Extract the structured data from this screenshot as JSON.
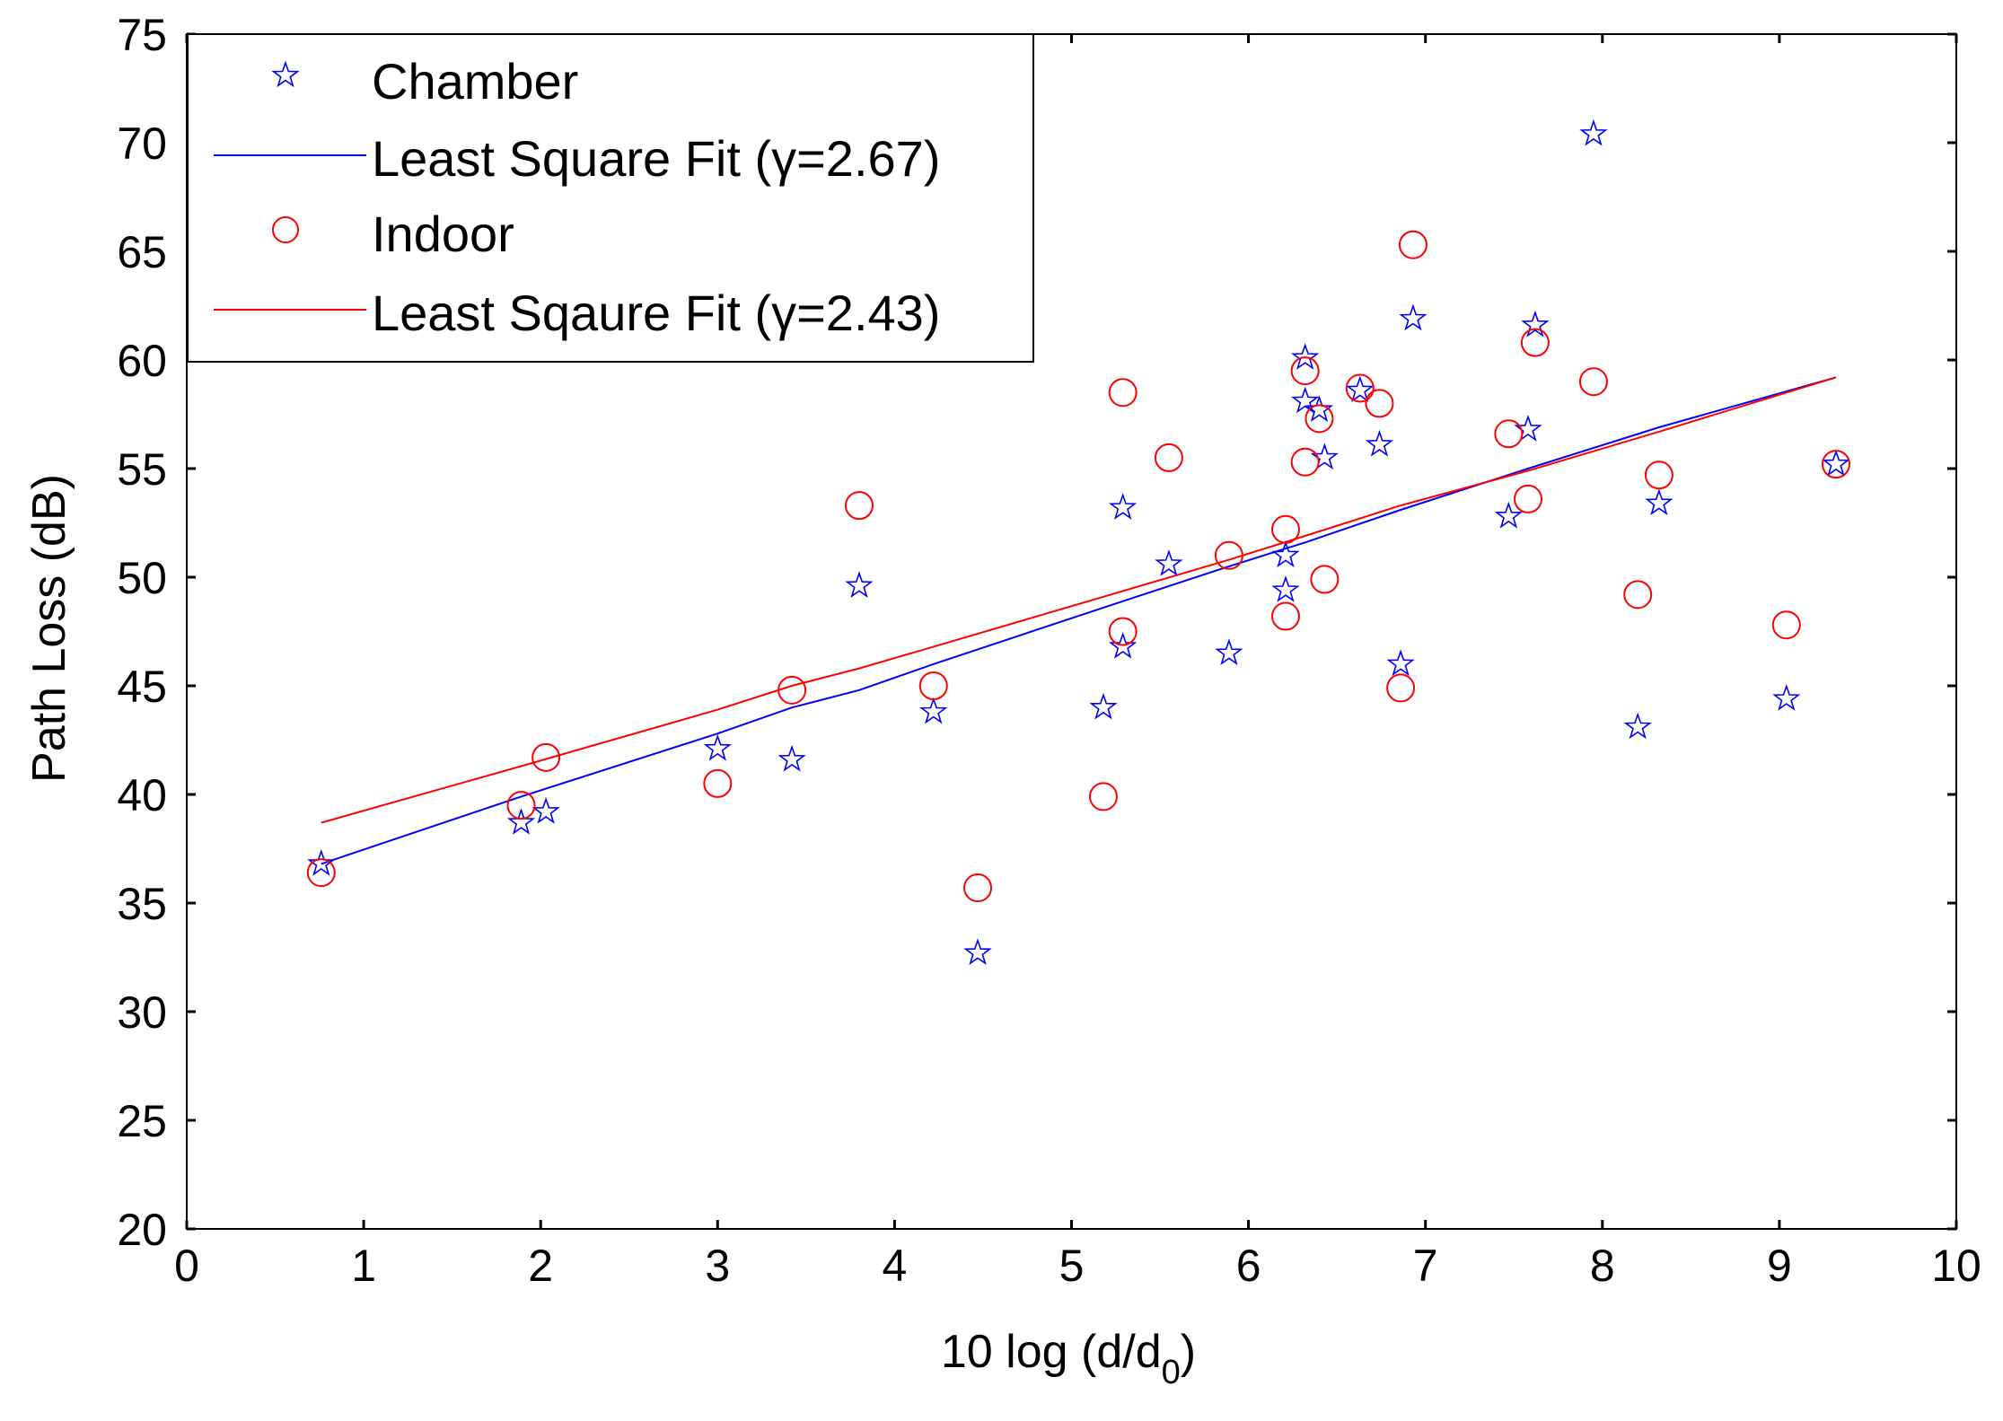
{
  "chart_data": {
    "type": "scatter",
    "xlabel": "10 log (d/d",
    "xlabel_sub": "0",
    "xlabel_close": ")",
    "ylabel": "Path Loss (dB)",
    "xlim": [
      0,
      10
    ],
    "ylim": [
      20,
      75
    ],
    "xticks": [
      "0",
      "1",
      "2",
      "3",
      "4",
      "5",
      "6",
      "7",
      "8",
      "9",
      "10"
    ],
    "yticks": [
      "20",
      "25",
      "30",
      "35",
      "40",
      "45",
      "50",
      "55",
      "60",
      "65",
      "70",
      "75"
    ],
    "grid": false,
    "legend_position": "top-left",
    "colors": {
      "chamber": "#0000ff",
      "indoor": "#ff0000"
    },
    "series": [
      {
        "name": "Chamber",
        "kind": "scatter",
        "marker": "star",
        "color": "#0000ff",
        "points": [
          [
            0.76,
            36.8
          ],
          [
            1.89,
            38.7
          ],
          [
            2.03,
            39.2
          ],
          [
            3.0,
            42.1
          ],
          [
            3.42,
            41.6
          ],
          [
            3.8,
            49.6
          ],
          [
            4.22,
            43.8
          ],
          [
            4.47,
            32.7
          ],
          [
            5.18,
            44.0
          ],
          [
            5.29,
            53.2
          ],
          [
            5.29,
            46.8
          ],
          [
            5.55,
            50.6
          ],
          [
            5.89,
            46.5
          ],
          [
            6.21,
            51.0
          ],
          [
            6.21,
            49.4
          ],
          [
            6.32,
            60.1
          ],
          [
            6.32,
            58.1
          ],
          [
            6.4,
            57.7
          ],
          [
            6.43,
            55.5
          ],
          [
            6.63,
            58.6
          ],
          [
            6.74,
            56.1
          ],
          [
            6.86,
            46.0
          ],
          [
            6.93,
            61.9
          ],
          [
            7.47,
            52.8
          ],
          [
            7.58,
            56.8
          ],
          [
            7.62,
            61.6
          ],
          [
            7.95,
            70.4
          ],
          [
            8.2,
            43.1
          ],
          [
            8.32,
            53.4
          ],
          [
            9.04,
            44.4
          ],
          [
            9.32,
            55.2
          ]
        ]
      },
      {
        "name": "Least Square Fit (γ=2.67)",
        "kind": "line",
        "color": "#0000ff",
        "points": [
          [
            0.76,
            36.8
          ],
          [
            1.89,
            39.9
          ],
          [
            3.0,
            42.8
          ],
          [
            3.42,
            44.0
          ],
          [
            3.8,
            44.8
          ],
          [
            4.22,
            46.0
          ],
          [
            5.18,
            48.6
          ],
          [
            5.89,
            50.5
          ],
          [
            6.32,
            51.6
          ],
          [
            6.86,
            53.1
          ],
          [
            7.58,
            55.0
          ],
          [
            8.32,
            56.9
          ],
          [
            9.32,
            59.2
          ]
        ]
      },
      {
        "name": "Indoor",
        "kind": "scatter",
        "marker": "circle",
        "color": "#ff0000",
        "points": [
          [
            0.76,
            36.4
          ],
          [
            1.89,
            39.5
          ],
          [
            2.03,
            41.7
          ],
          [
            3.0,
            40.5
          ],
          [
            3.42,
            44.8
          ],
          [
            3.8,
            53.3
          ],
          [
            4.22,
            45.0
          ],
          [
            4.47,
            35.7
          ],
          [
            5.18,
            39.9
          ],
          [
            5.29,
            58.5
          ],
          [
            5.29,
            47.5
          ],
          [
            5.55,
            55.5
          ],
          [
            5.89,
            51.0
          ],
          [
            6.21,
            52.2
          ],
          [
            6.21,
            48.2
          ],
          [
            6.32,
            59.5
          ],
          [
            6.32,
            55.3
          ],
          [
            6.4,
            57.3
          ],
          [
            6.43,
            49.9
          ],
          [
            6.63,
            58.7
          ],
          [
            6.74,
            58.0
          ],
          [
            6.86,
            44.9
          ],
          [
            6.93,
            65.3
          ],
          [
            7.47,
            56.6
          ],
          [
            7.58,
            53.6
          ],
          [
            7.62,
            60.8
          ],
          [
            7.95,
            59.0
          ],
          [
            8.2,
            49.2
          ],
          [
            8.32,
            54.7
          ],
          [
            9.04,
            47.8
          ],
          [
            9.32,
            55.2
          ]
        ]
      },
      {
        "name": "Least Sqaure Fit (γ=2.43)",
        "kind": "line",
        "color": "#ff0000",
        "points": [
          [
            0.76,
            38.7
          ],
          [
            1.89,
            41.3
          ],
          [
            3.0,
            43.9
          ],
          [
            3.42,
            45.0
          ],
          [
            3.8,
            45.8
          ],
          [
            4.22,
            46.8
          ],
          [
            5.18,
            49.1
          ],
          [
            5.89,
            50.8
          ],
          [
            6.32,
            51.9
          ],
          [
            6.86,
            53.3
          ],
          [
            7.58,
            54.9
          ],
          [
            8.32,
            56.7
          ],
          [
            9.32,
            59.2
          ]
        ]
      }
    ]
  }
}
